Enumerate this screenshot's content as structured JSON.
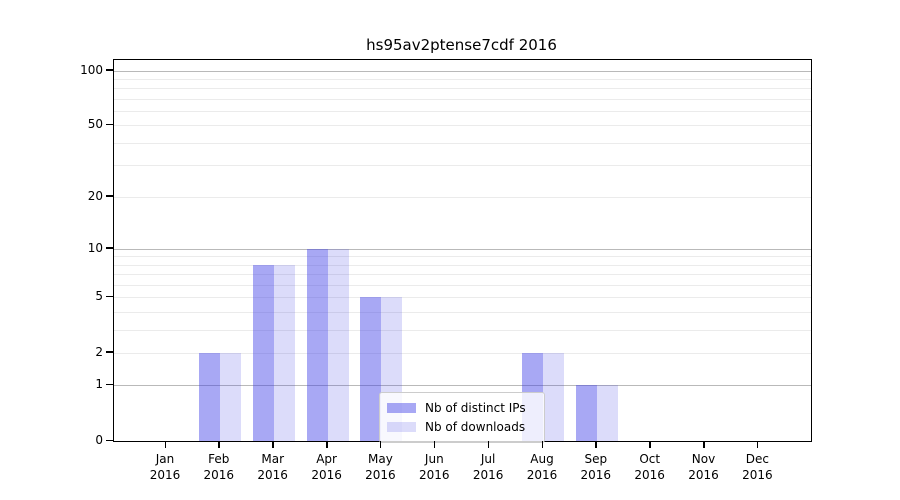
{
  "chart_data": {
    "type": "bar",
    "title": "hs95av2ptense7cdf 2016",
    "categories": [
      "Jan",
      "Feb",
      "Mar",
      "Apr",
      "May",
      "Jun",
      "Jul",
      "Aug",
      "Sep",
      "Oct",
      "Nov",
      "Dec"
    ],
    "year_label": "2016",
    "series": [
      {
        "name": "Nb of distinct IPs",
        "color": "rgba(62,62,230,0.45)",
        "values": [
          0,
          2,
          8,
          10,
          5,
          0,
          0,
          2,
          1,
          0,
          0,
          0
        ]
      },
      {
        "name": "Nb of downloads",
        "color": "rgba(62,62,230,0.18)",
        "values": [
          0,
          2,
          8,
          10,
          5,
          0,
          0,
          2,
          1,
          0,
          0,
          0
        ]
      }
    ],
    "yscale": "log1p",
    "ylim": [
      0,
      115
    ],
    "yticks": [
      0,
      1,
      2,
      5,
      10,
      20,
      50,
      100
    ],
    "gridlines": {
      "major": [
        1,
        10,
        100
      ],
      "minor": [
        2,
        3,
        4,
        5,
        6,
        7,
        8,
        9,
        20,
        30,
        40,
        50,
        60,
        70,
        80,
        90
      ]
    },
    "legend": {
      "position": "lower-center"
    },
    "colors": {
      "grid_major": "#b9b9b9",
      "grid_minor": "#ebebeb",
      "spine": "#000000"
    }
  }
}
